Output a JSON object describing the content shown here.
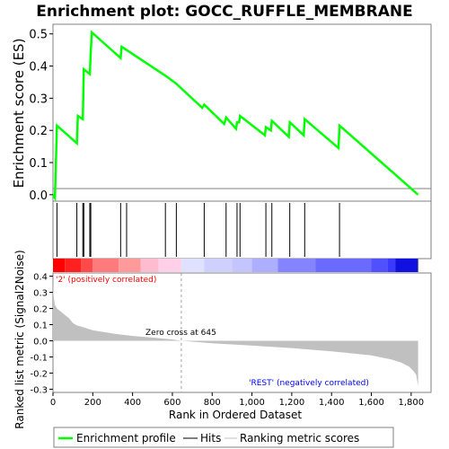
{
  "title": "Enrichment plot: GOCC_RUFFLE_MEMBRANE",
  "top_panel": {
    "ylabel": "Enrichment score (ES)",
    "yticks": [
      "0.0",
      "0.1",
      "0.2",
      "0.3",
      "0.4",
      "0.5"
    ]
  },
  "bottom_panel": {
    "ylabel": "Ranked list metric (Signal2Noise)",
    "xlabel": "Rank in Ordered Dataset",
    "yticks": [
      "0.4",
      "0.3",
      "0.2",
      "0.1",
      "0.0",
      "-0.1",
      "-0.2",
      "-0.3"
    ],
    "xticks": [
      "0",
      "200",
      "400",
      "600",
      "800",
      "1,000",
      "1,200",
      "1,400",
      "1,600",
      "1,800"
    ],
    "pos_label": "'2' (positively correlated)",
    "neg_label": "'REST' (negatively correlated)",
    "zero_cross_label": "Zero cross at 645"
  },
  "legend": {
    "items": [
      "Enrichment profile",
      "Hits",
      "Ranking metric scores"
    ]
  },
  "colors": {
    "es_line": "#00ff00",
    "hits": "#000000",
    "metric_fill": "#c0c0c0",
    "pos_label": "#ff0000",
    "neg_label": "#0000ff"
  },
  "chart_data": [
    {
      "type": "line",
      "name": "Enrichment profile",
      "x": [
        0,
        10,
        20,
        120,
        125,
        150,
        155,
        185,
        190,
        195,
        340,
        345,
        370,
        565,
        620,
        750,
        760,
        860,
        870,
        920,
        925,
        935,
        940,
        1065,
        1070,
        1095,
        1100,
        1185,
        1190,
        1260,
        1265,
        1435,
        1440,
        1835
      ],
      "y": [
        0.0,
        -0.01,
        0.215,
        0.16,
        0.245,
        0.235,
        0.39,
        0.375,
        0.445,
        0.505,
        0.425,
        0.46,
        0.45,
        0.37,
        0.345,
        0.27,
        0.28,
        0.22,
        0.24,
        0.205,
        0.225,
        0.225,
        0.245,
        0.185,
        0.21,
        0.2,
        0.23,
        0.18,
        0.225,
        0.185,
        0.235,
        0.145,
        0.215,
        0.0
      ],
      "ylim": [
        -0.02,
        0.53
      ],
      "xlim": [
        0,
        1900
      ]
    },
    {
      "type": "bar",
      "name": "Hits",
      "x": [
        20,
        120,
        150,
        155,
        185,
        190,
        340,
        370,
        565,
        620,
        760,
        870,
        925,
        940,
        1070,
        1100,
        1190,
        1265,
        1440
      ]
    },
    {
      "type": "area",
      "name": "Ranking metric scores",
      "x": [
        0,
        2,
        5,
        10,
        20,
        40,
        60,
        80,
        100,
        120,
        150,
        200,
        300,
        400,
        500,
        600,
        645,
        800,
        1000,
        1200,
        1400,
        1600,
        1700,
        1750,
        1790,
        1810,
        1825,
        1835
      ],
      "y": [
        0.39,
        0.3,
        0.26,
        0.22,
        0.2,
        0.18,
        0.16,
        0.14,
        0.11,
        0.095,
        0.085,
        0.065,
        0.045,
        0.03,
        0.02,
        0.008,
        0.0,
        -0.015,
        -0.03,
        -0.045,
        -0.065,
        -0.09,
        -0.115,
        -0.135,
        -0.16,
        -0.185,
        -0.21,
        -0.28
      ],
      "ylim": [
        -0.32,
        0.42
      ],
      "xlim": [
        0,
        1900
      ],
      "zero_cross": 645
    }
  ]
}
